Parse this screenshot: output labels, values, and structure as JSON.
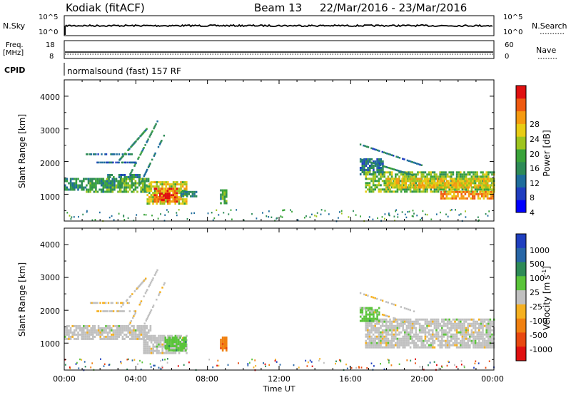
{
  "header": {
    "station": "Kodiak (fitACF)",
    "beam": "Beam 13",
    "dates": "22/Mar/2016 - 23/Mar/2016"
  },
  "strips": {
    "nsky": {
      "label": "N.Sky",
      "ticks": [
        "10^5",
        "10^0"
      ]
    },
    "nsearch": {
      "label": "N.Search",
      "ticks": [
        "10^5",
        "10^0"
      ]
    },
    "freq": {
      "label_line1": "Freq.",
      "label_line2": "[MHz]",
      "ticks": [
        "18",
        "8"
      ]
    },
    "nave": {
      "label": "Nave",
      "ticks": [
        "60",
        "0"
      ]
    },
    "cpid": {
      "label": "CPID",
      "value": "normalsound (fast) 157 RF"
    }
  },
  "chart_data": [
    {
      "type": "heatmap",
      "name": "power",
      "ylabel": "Slant Range [km]",
      "xlabel": "",
      "yticks": [
        "4000",
        "3000",
        "2000",
        "1000"
      ],
      "ylim": [
        180,
        4500
      ],
      "xlim_hours": [
        0,
        24
      ],
      "colorbar": {
        "label": "Power [dB]",
        "ticks": [
          "28",
          "24",
          "20",
          "16",
          "12",
          "8",
          "4"
        ],
        "range": [
          0,
          30
        ],
        "colors": [
          "#0000ff",
          "#203ec0",
          "#1f6d9c",
          "#2e8b57",
          "#3aa33a",
          "#9ec41e",
          "#e8cc14",
          "#f59a10",
          "#ef5a10",
          "#e01010"
        ]
      },
      "regions": [
        {
          "t0": 0.0,
          "t1": 1.2,
          "r0": 1150,
          "r1": 1500,
          "p": 10
        },
        {
          "t0": 1.2,
          "t1": 3.2,
          "r0": 1100,
          "r1": 1500,
          "p": 12
        },
        {
          "t0": 3.0,
          "t1": 4.8,
          "r0": 1100,
          "r1": 1500,
          "p": 14
        },
        {
          "t0": 2.4,
          "t1": 4.2,
          "r0": 1500,
          "r1": 1620,
          "p": 9
        },
        {
          "t0": 4.6,
          "t1": 6.8,
          "r0": 700,
          "r1": 1400,
          "p": 18
        },
        {
          "t0": 5.0,
          "t1": 6.3,
          "r0": 750,
          "r1": 1200,
          "p": 25
        },
        {
          "t0": 5.3,
          "t1": 5.9,
          "r0": 800,
          "r1": 1050,
          "p": 29
        },
        {
          "t0": 6.5,
          "t1": 7.4,
          "r0": 950,
          "r1": 1100,
          "p": 9
        },
        {
          "t0": 8.7,
          "t1": 9.1,
          "r0": 700,
          "r1": 1150,
          "p": 12
        },
        {
          "t0": 16.5,
          "t1": 17.8,
          "r0": 1600,
          "r1": 2100,
          "p": 8
        },
        {
          "t0": 16.8,
          "t1": 24.0,
          "r0": 1100,
          "r1": 1700,
          "p": 15
        },
        {
          "t0": 18.0,
          "t1": 24.0,
          "r0": 1200,
          "r1": 1500,
          "p": 20
        },
        {
          "t0": 21.0,
          "t1": 24.0,
          "r0": 850,
          "r1": 1100,
          "p": 23
        }
      ],
      "streaks": [
        {
          "t0": 1.2,
          "t1": 3.8,
          "r0": 2250,
          "r1": 2250,
          "p": 8
        },
        {
          "t0": 3.0,
          "t1": 4.6,
          "r0": 2050,
          "r1": 3050,
          "p": 10
        },
        {
          "t0": 3.6,
          "t1": 5.2,
          "r0": 1600,
          "r1": 3300,
          "p": 11
        },
        {
          "t0": 4.2,
          "t1": 5.6,
          "r0": 1350,
          "r1": 2900,
          "p": 9
        },
        {
          "t0": 1.8,
          "t1": 4.0,
          "r0": 2000,
          "r1": 2000,
          "p": 7
        },
        {
          "t0": 16.5,
          "t1": 20.0,
          "r0": 2550,
          "r1": 1900,
          "p": 8
        },
        {
          "t0": 16.5,
          "t1": 19.5,
          "r0": 2100,
          "r1": 1600,
          "p": 10
        }
      ]
    },
    {
      "type": "heatmap",
      "name": "velocity",
      "ylabel": "Slant Range [km]",
      "xlabel": "Time UT",
      "xticks": [
        "00:00",
        "04:00",
        "08:00",
        "12:00",
        "16:00",
        "20:00",
        "00:00"
      ],
      "yticks": [
        "4000",
        "3000",
        "2000",
        "1000"
      ],
      "ylim": [
        180,
        4500
      ],
      "xlim_hours": [
        0,
        24
      ],
      "colorbar": {
        "label": "Velocity [m s",
        "label_sup": "-1",
        "ticks": [
          "1000",
          "500",
          "100",
          "25",
          "-25",
          "-100",
          "-500",
          "-1000"
        ],
        "colors": [
          "#1f3fbf",
          "#2866a6",
          "#2e8b57",
          "#5ac43a",
          "#c0c0c0",
          "#f5b020",
          "#f08010",
          "#e84810",
          "#e01010"
        ]
      },
      "regions": [
        {
          "t0": 0.0,
          "t1": 4.8,
          "r0": 1100,
          "r1": 1550,
          "v": 4
        },
        {
          "t0": 4.4,
          "t1": 6.8,
          "r0": 700,
          "r1": 1250,
          "v": 4
        },
        {
          "t0": 5.6,
          "t1": 6.8,
          "r0": 750,
          "r1": 1200,
          "v": 3
        },
        {
          "t0": 8.7,
          "t1": 9.1,
          "r0": 750,
          "r1": 1200,
          "v": 6
        },
        {
          "t0": 16.8,
          "t1": 24.0,
          "r0": 850,
          "r1": 1750,
          "v": 4
        },
        {
          "t0": 16.5,
          "t1": 17.6,
          "r0": 1700,
          "r1": 2100,
          "v": 3
        }
      ]
    }
  ]
}
